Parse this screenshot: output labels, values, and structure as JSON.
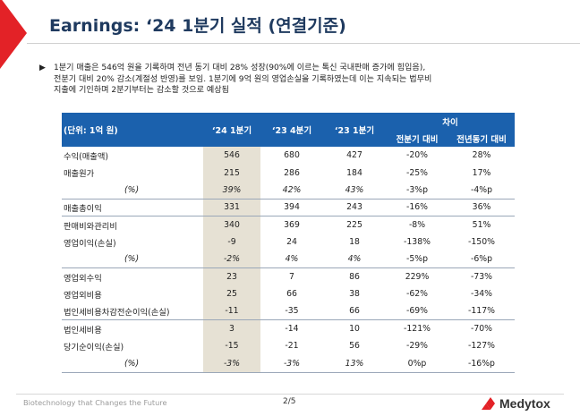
{
  "header": {
    "title": "Earnings: ‘24 1분기 실적 (연결기준)"
  },
  "summary": {
    "bullet": "▶",
    "lines": [
      "1분기 매출은 546억 원을 기록하며 전년 동기 대비 28% 성장(90%에 이르는 톡신 국내판매 증가에 힘입음),",
      "전분기 대비 20% 감소(계절성 반영)를 보임. 1분기에 9억 원의 영업손실을 기록하였는데 이는 지속되는 법무비",
      "지출에 기인하며 2분기부터는 감소할 것으로 예상됨"
    ]
  },
  "table": {
    "unit_label": "(단위: 1억 원)",
    "columns": [
      "‘24 1분기",
      "‘23 4분기",
      "‘23 1분기"
    ],
    "diff_header": "차이",
    "diff_columns": [
      "전분기 대비",
      "전년동기 대비"
    ],
    "rows": [
      {
        "label": "수익(매출액)",
        "values": [
          "546",
          "680",
          "427",
          "-20%",
          "28%"
        ]
      },
      {
        "label": "매출원가",
        "values": [
          "215",
          "286",
          "184",
          "-25%",
          "17%"
        ]
      },
      {
        "label": "(%)",
        "values": [
          "39%",
          "42%",
          "43%",
          "-3%p",
          "-4%p"
        ]
      },
      {
        "label": "매출총이익",
        "values": [
          "331",
          "394",
          "243",
          "-16%",
          "36%"
        ]
      },
      {
        "label": "판매비와관리비",
        "values": [
          "340",
          "369",
          "225",
          "-8%",
          "51%"
        ]
      },
      {
        "label": "영업이익(손실)",
        "values": [
          "-9",
          "24",
          "18",
          "-138%",
          "-150%"
        ]
      },
      {
        "label": "(%)",
        "values": [
          "-2%",
          "4%",
          "4%",
          "-5%p",
          "-6%p"
        ]
      },
      {
        "label": "영업외수익",
        "values": [
          "23",
          "7",
          "86",
          "229%",
          "-73%"
        ]
      },
      {
        "label": "영업외비용",
        "values": [
          "25",
          "66",
          "38",
          "-62%",
          "-34%"
        ]
      },
      {
        "label": "법인세비용차감전순이익(손실)",
        "values": [
          "-11",
          "-35",
          "66",
          "-69%",
          "-117%"
        ]
      },
      {
        "label": "법인세비용",
        "values": [
          "3",
          "-14",
          "10",
          "-121%",
          "-70%"
        ]
      },
      {
        "label": "당기순이익(손실)",
        "values": [
          "-15",
          "-21",
          "56",
          "-29%",
          "-127%"
        ]
      },
      {
        "label": "(%)",
        "values": [
          "-3%",
          "-3%",
          "13%",
          "0%p",
          "-16%p"
        ]
      }
    ]
  },
  "footer": {
    "tagline": "Biotechnology that Changes the Future",
    "page": "2/5",
    "logo_text": "Medytox"
  },
  "colors": {
    "accent_red": "#e32227",
    "header_blue": "#1b61ad",
    "title_navy": "#1f3a5f",
    "highlight_column": "#e6e1d4"
  }
}
